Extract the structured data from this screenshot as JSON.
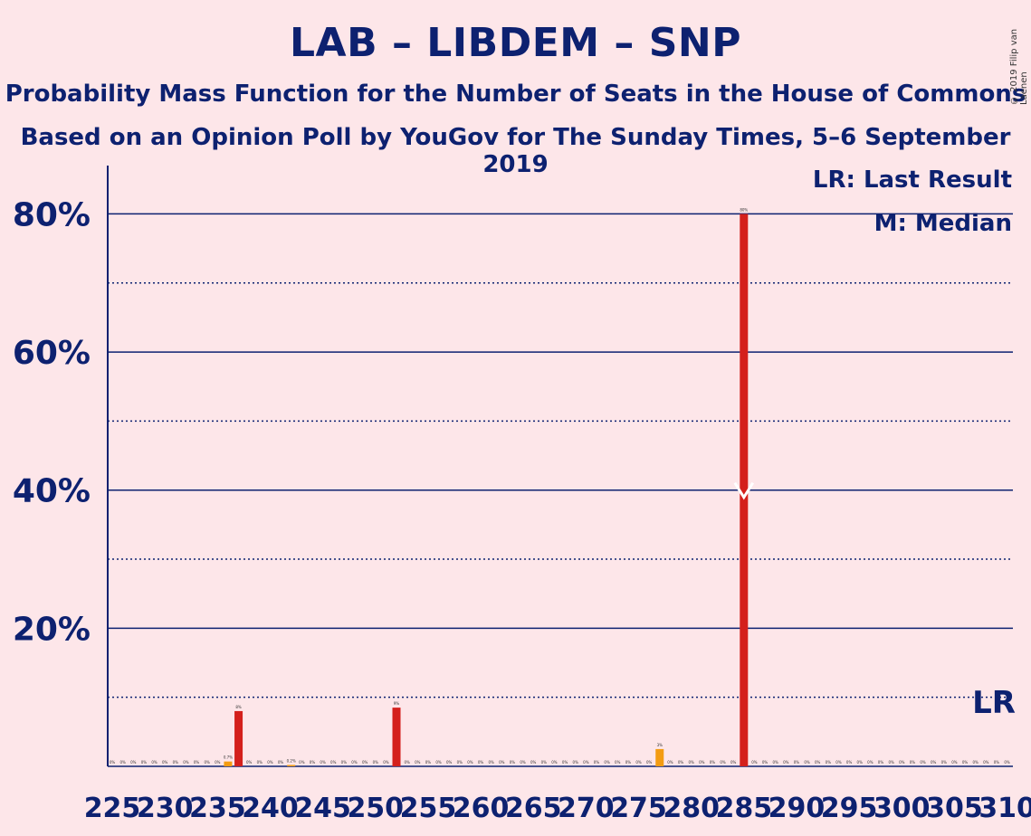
{
  "title": "LAB – LIBDEM – SNP",
  "subtitle1": "Probability Mass Function for the Number of Seats in the House of Commons",
  "subtitle2": "Based on an Opinion Poll by YouGov for The Sunday Times, 5–6 September 2019",
  "copyright": "© 2019 Filip van Laenen",
  "legend": {
    "last_result": "LR: Last Result",
    "median": "M: Median"
  },
  "lr_marker": "LR",
  "colors": {
    "background": "#fde6e9",
    "axis": "#0d2170",
    "bar_main": "#d4201c",
    "bar_alt": "#f39c12",
    "median_mark": "#ffffff"
  },
  "chart_data": {
    "type": "bar",
    "xlim": [
      225,
      310
    ],
    "ylim": [
      0,
      0.87
    ],
    "yticks": [
      0.2,
      0.4,
      0.6,
      0.8
    ],
    "ytick_labels": [
      "20%",
      "40%",
      "60%",
      "80%"
    ],
    "minor_gridlines": [
      0.1,
      0.3,
      0.5,
      0.7
    ],
    "xtick_labels": [
      "225",
      "230",
      "235",
      "240",
      "245",
      "250",
      "255",
      "260",
      "265",
      "270",
      "275",
      "280",
      "285",
      "290",
      "295",
      "300",
      "305",
      "310"
    ],
    "median_seat": 285,
    "last_result_seat": 310,
    "bars": [
      {
        "seat": 236,
        "value": 0.007,
        "label": "0.7%",
        "color": "#f39c12"
      },
      {
        "seat": 237,
        "value": 0.08,
        "label": "8%",
        "color": "#d4201c"
      },
      {
        "seat": 242,
        "value": 0.002,
        "label": "0.2%",
        "color": "#f39c12"
      },
      {
        "seat": 252,
        "value": 0.085,
        "label": "9%",
        "color": "#d4201c"
      },
      {
        "seat": 277,
        "value": 0.025,
        "label": "3%",
        "color": "#f39c12"
      },
      {
        "seat": 285,
        "value": 0.8,
        "label": "80%",
        "color": "#d4201c"
      }
    ],
    "zero_label": "0%"
  }
}
